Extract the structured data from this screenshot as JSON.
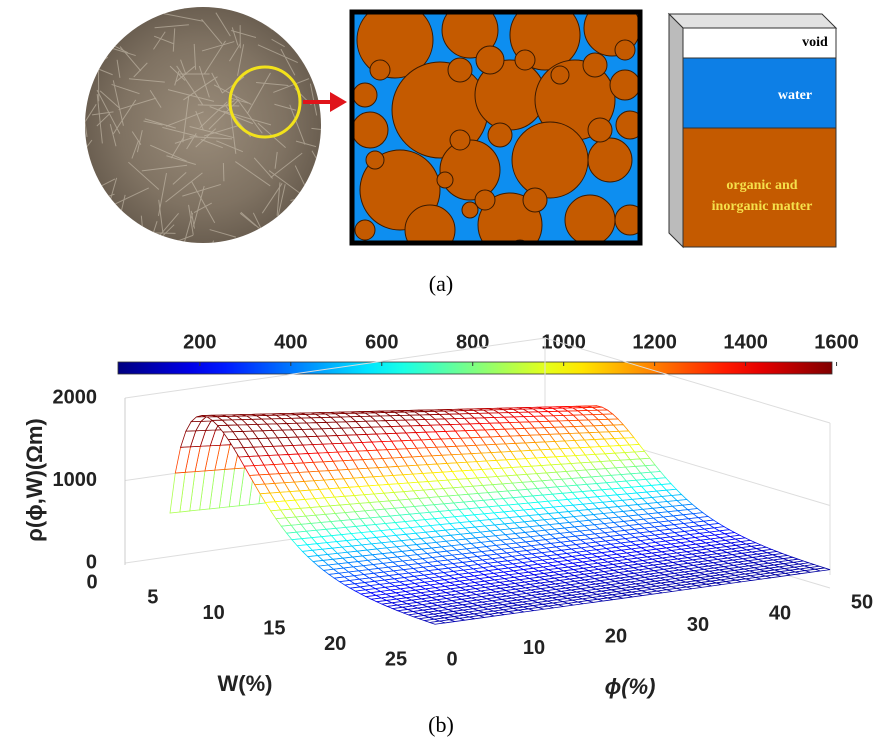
{
  "panel_a": {
    "labels": {
      "void": "void",
      "water": "water",
      "matter_line1": "organic and",
      "matter_line2": "inorganic matter"
    },
    "caption": "(a)"
  },
  "panel_b": {
    "colorbar": {
      "ticks": [
        200,
        400,
        600,
        800,
        1000,
        1200,
        1400,
        1600
      ],
      "lim": [
        20,
        1590
      ]
    },
    "z_axis": {
      "label": "ρ(ϕ,W)(Ωm)",
      "ticks": [
        0,
        1000,
        2000
      ],
      "lim": [
        0,
        2000
      ]
    },
    "w_axis": {
      "label": "W(%)",
      "ticks": [
        0,
        5,
        10,
        15,
        20,
        25
      ],
      "lim": [
        0,
        25
      ]
    },
    "phi_axis": {
      "label": "ϕ(%)",
      "ticks": [
        0,
        10,
        20,
        30,
        40,
        50
      ],
      "lim": [
        0,
        50
      ]
    },
    "caption": "(b)"
  }
}
